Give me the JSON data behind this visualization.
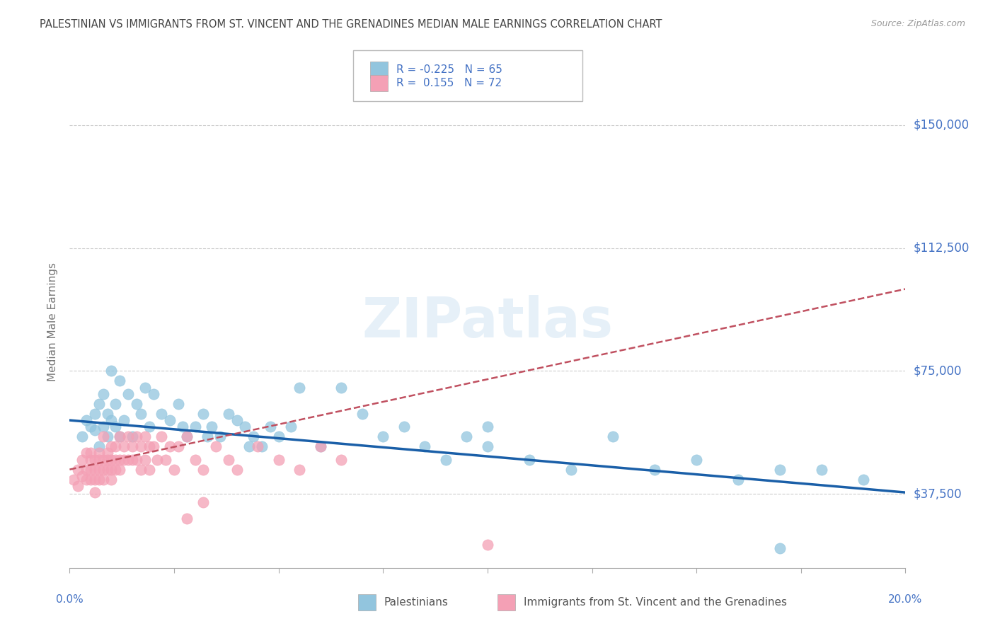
{
  "title": "PALESTINIAN VS IMMIGRANTS FROM ST. VINCENT AND THE GRENADINES MEDIAN MALE EARNINGS CORRELATION CHART",
  "source": "Source: ZipAtlas.com",
  "ylabel": "Median Male Earnings",
  "watermark": "ZIPatlas",
  "legend_r1_val": "-0.225",
  "legend_n1_val": "65",
  "legend_r2_val": "0.155",
  "legend_n2_val": "72",
  "legend_label1": "Palestinians",
  "legend_label2": "Immigrants from St. Vincent and the Grenadines",
  "xmin": 0.0,
  "xmax": 0.2,
  "ymin": 15000,
  "ymax": 165000,
  "yticks": [
    37500,
    75000,
    112500,
    150000
  ],
  "ytick_labels": [
    "$37,500",
    "$75,000",
    "$112,500",
    "$150,000"
  ],
  "color_blue": "#92c5de",
  "color_pink": "#f4a0b5",
  "color_trend_blue": "#1a5fa8",
  "color_trend_pink": "#c05060",
  "color_axis_label": "#4472c4",
  "title_color": "#444444",
  "grid_color": "#cccccc",
  "blue_trend_x": [
    0.0,
    0.2
  ],
  "blue_trend_y": [
    60000,
    38000
  ],
  "pink_trend_x": [
    0.0,
    0.2
  ],
  "pink_trend_y": [
    45000,
    100000
  ],
  "blue_x": [
    0.003,
    0.004,
    0.005,
    0.006,
    0.006,
    0.007,
    0.007,
    0.008,
    0.008,
    0.009,
    0.009,
    0.01,
    0.01,
    0.011,
    0.011,
    0.012,
    0.012,
    0.013,
    0.014,
    0.015,
    0.016,
    0.017,
    0.018,
    0.019,
    0.02,
    0.022,
    0.024,
    0.026,
    0.028,
    0.03,
    0.032,
    0.034,
    0.036,
    0.038,
    0.04,
    0.042,
    0.044,
    0.046,
    0.048,
    0.05,
    0.055,
    0.06,
    0.065,
    0.07,
    0.075,
    0.08,
    0.085,
    0.09,
    0.095,
    0.1,
    0.11,
    0.12,
    0.13,
    0.14,
    0.15,
    0.16,
    0.17,
    0.18,
    0.19,
    0.027,
    0.033,
    0.043,
    0.053,
    0.1,
    0.17
  ],
  "blue_y": [
    55000,
    60000,
    58000,
    62000,
    57000,
    65000,
    52000,
    68000,
    58000,
    55000,
    62000,
    60000,
    75000,
    58000,
    65000,
    55000,
    72000,
    60000,
    68000,
    55000,
    65000,
    62000,
    70000,
    58000,
    68000,
    62000,
    60000,
    65000,
    55000,
    58000,
    62000,
    58000,
    55000,
    62000,
    60000,
    58000,
    55000,
    52000,
    58000,
    55000,
    70000,
    52000,
    70000,
    62000,
    55000,
    58000,
    52000,
    48000,
    55000,
    52000,
    48000,
    45000,
    55000,
    45000,
    48000,
    42000,
    45000,
    45000,
    42000,
    58000,
    55000,
    52000,
    58000,
    58000,
    21000
  ],
  "pink_x": [
    0.001,
    0.002,
    0.002,
    0.003,
    0.003,
    0.004,
    0.004,
    0.004,
    0.005,
    0.005,
    0.005,
    0.005,
    0.006,
    0.006,
    0.006,
    0.006,
    0.007,
    0.007,
    0.007,
    0.007,
    0.008,
    0.008,
    0.008,
    0.008,
    0.009,
    0.009,
    0.009,
    0.01,
    0.01,
    0.01,
    0.01,
    0.011,
    0.011,
    0.011,
    0.012,
    0.012,
    0.012,
    0.013,
    0.013,
    0.014,
    0.014,
    0.015,
    0.015,
    0.016,
    0.016,
    0.017,
    0.017,
    0.018,
    0.018,
    0.019,
    0.019,
    0.02,
    0.021,
    0.022,
    0.023,
    0.024,
    0.025,
    0.026,
    0.028,
    0.03,
    0.032,
    0.035,
    0.038,
    0.04,
    0.045,
    0.05,
    0.055,
    0.06,
    0.065,
    0.028,
    0.032,
    0.1
  ],
  "pink_y": [
    42000,
    45000,
    40000,
    48000,
    43000,
    45000,
    42000,
    50000,
    48000,
    45000,
    42000,
    50000,
    48000,
    45000,
    42000,
    38000,
    50000,
    48000,
    45000,
    42000,
    55000,
    48000,
    45000,
    42000,
    50000,
    48000,
    45000,
    52000,
    48000,
    45000,
    42000,
    52000,
    48000,
    45000,
    55000,
    48000,
    45000,
    52000,
    48000,
    55000,
    48000,
    52000,
    48000,
    55000,
    48000,
    52000,
    45000,
    55000,
    48000,
    52000,
    45000,
    52000,
    48000,
    55000,
    48000,
    52000,
    45000,
    52000,
    55000,
    48000,
    45000,
    52000,
    48000,
    45000,
    52000,
    48000,
    45000,
    52000,
    48000,
    30000,
    35000,
    22000
  ]
}
